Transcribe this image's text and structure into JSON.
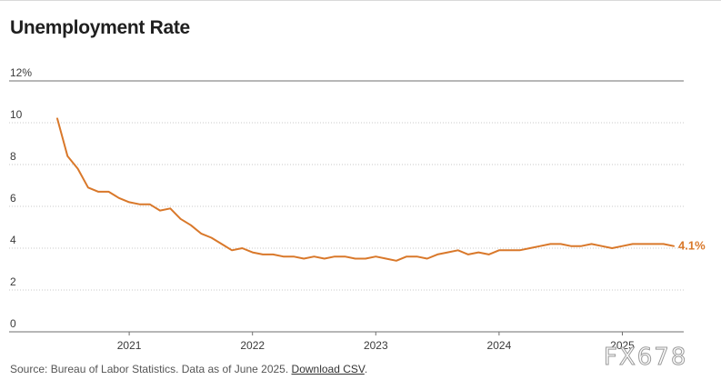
{
  "chart_data": {
    "type": "line",
    "title": "Unemployment Rate",
    "xlabel": "",
    "ylabel": "",
    "y_ticks": [
      "0",
      "2",
      "4",
      "6",
      "8",
      "10",
      "12%"
    ],
    "y_tick_values": [
      0,
      2,
      4,
      6,
      8,
      10,
      12
    ],
    "ylim": [
      0,
      12
    ],
    "x_ticks": [
      "2021",
      "2022",
      "2023",
      "2024",
      "2025"
    ],
    "x_tick_values": [
      "2021-01",
      "2022-01",
      "2023-01",
      "2024-01",
      "2025-01"
    ],
    "xlim": [
      "2020-06",
      "2025-06"
    ],
    "grid": "horizontal-dotted",
    "legend": "none",
    "series": [
      {
        "color": "#d9782a",
        "end_label": "4.1%",
        "points": [
          [
            "2020-06",
            10.2
          ],
          [
            "2020-07",
            8.4
          ],
          [
            "2020-08",
            7.8
          ],
          [
            "2020-09",
            6.9
          ],
          [
            "2020-10",
            6.7
          ],
          [
            "2020-11",
            6.7
          ],
          [
            "2020-12",
            6.4
          ],
          [
            "2021-01",
            6.2
          ],
          [
            "2021-02",
            6.1
          ],
          [
            "2021-03",
            6.1
          ],
          [
            "2021-04",
            5.8
          ],
          [
            "2021-05",
            5.9
          ],
          [
            "2021-06",
            5.4
          ],
          [
            "2021-07",
            5.1
          ],
          [
            "2021-08",
            4.7
          ],
          [
            "2021-09",
            4.5
          ],
          [
            "2021-10",
            4.2
          ],
          [
            "2021-11",
            3.9
          ],
          [
            "2021-12",
            4.0
          ],
          [
            "2022-01",
            3.8
          ],
          [
            "2022-02",
            3.7
          ],
          [
            "2022-03",
            3.7
          ],
          [
            "2022-04",
            3.6
          ],
          [
            "2022-05",
            3.6
          ],
          [
            "2022-06",
            3.5
          ],
          [
            "2022-07",
            3.6
          ],
          [
            "2022-08",
            3.5
          ],
          [
            "2022-09",
            3.6
          ],
          [
            "2022-10",
            3.6
          ],
          [
            "2022-11",
            3.5
          ],
          [
            "2022-12",
            3.5
          ],
          [
            "2023-01",
            3.6
          ],
          [
            "2023-02",
            3.5
          ],
          [
            "2023-03",
            3.4
          ],
          [
            "2023-04",
            3.6
          ],
          [
            "2023-05",
            3.6
          ],
          [
            "2023-06",
            3.5
          ],
          [
            "2023-07",
            3.7
          ],
          [
            "2023-08",
            3.8
          ],
          [
            "2023-09",
            3.9
          ],
          [
            "2023-10",
            3.7
          ],
          [
            "2023-11",
            3.8
          ],
          [
            "2023-12",
            3.7
          ],
          [
            "2024-01",
            3.9
          ],
          [
            "2024-02",
            3.9
          ],
          [
            "2024-03",
            3.9
          ],
          [
            "2024-04",
            4.0
          ],
          [
            "2024-05",
            4.1
          ],
          [
            "2024-06",
            4.2
          ],
          [
            "2024-07",
            4.2
          ],
          [
            "2024-08",
            4.1
          ],
          [
            "2024-09",
            4.1
          ],
          [
            "2024-10",
            4.2
          ],
          [
            "2024-11",
            4.1
          ],
          [
            "2024-12",
            4.0
          ],
          [
            "2025-01",
            4.1
          ],
          [
            "2025-02",
            4.2
          ],
          [
            "2025-03",
            4.2
          ],
          [
            "2025-04",
            4.2
          ],
          [
            "2025-05",
            4.2
          ],
          [
            "2025-06",
            4.1
          ]
        ]
      }
    ]
  },
  "footer": {
    "source_text": "Source: Bureau of Labor Statistics. Data as of June 2025.",
    "download_link": "Download CSV",
    "trailing": "."
  },
  "watermark": "FX678"
}
